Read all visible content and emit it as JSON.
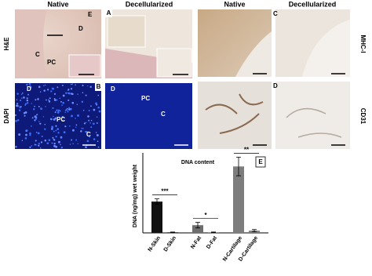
{
  "left_block": {
    "col_headers": [
      "Native",
      "Decellularized"
    ],
    "row_labels": [
      "H&E",
      "DAPI"
    ],
    "panel_letters": [
      "A",
      "B"
    ],
    "he_native_labels": [
      "E",
      "D",
      "C",
      "PC"
    ],
    "dapi_native_labels": [
      "D",
      "PC",
      "C"
    ],
    "dapi_decell_labels": [
      "D",
      "PC",
      "C"
    ]
  },
  "right_block": {
    "col_headers": [
      "Native",
      "Decellularized"
    ],
    "row_labels": [
      "MHC-I",
      "CD31"
    ],
    "panel_letters": [
      "C",
      "D"
    ]
  },
  "chart_data": {
    "type": "bar",
    "title": "DNA content",
    "panel_letter": "E",
    "y_label": "DNA (ng/mg) wet weight",
    "categories": [
      "N-Skin",
      "D-Skin",
      "N-Fat",
      "D-Fat",
      "N-Cartilage",
      "D-Cartilage"
    ],
    "values": [
      57,
      1,
      14,
      1,
      121,
      4
    ],
    "errors": [
      5,
      0.5,
      5,
      0.5,
      17,
      2
    ],
    "colors": [
      "#111111",
      "#111111",
      "#6e6e6e",
      "#6e6e6e",
      "#7d7d7d",
      "#7d7d7d"
    ],
    "significance": [
      "***",
      "*",
      "**"
    ],
    "ylim": [
      0,
      150
    ]
  }
}
